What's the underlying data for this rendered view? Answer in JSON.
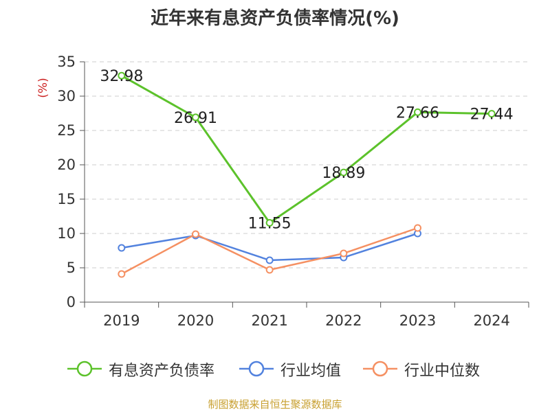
{
  "chart_data": {
    "type": "line",
    "title": "近年来有息资产负债率情况(%)",
    "ylabel": "(%)",
    "categories": [
      "2019",
      "2020",
      "2021",
      "2022",
      "2023",
      "2024"
    ],
    "yticks": [
      0,
      5,
      10,
      15,
      20,
      25,
      30,
      35
    ],
    "ylim": [
      0,
      35
    ],
    "grid": true,
    "legend_position": "bottom",
    "series": [
      {
        "name": "有息资产负债率",
        "color": "#5cc22b",
        "values": [
          32.98,
          26.91,
          11.55,
          18.89,
          27.66,
          27.44
        ],
        "labels": [
          "32.98",
          "26.91",
          "11.55",
          "18.89",
          "27.66",
          "27.44"
        ]
      },
      {
        "name": "行业均值",
        "color": "#5282de",
        "values": [
          7.9,
          9.7,
          6.1,
          6.5,
          10.0,
          null
        ]
      },
      {
        "name": "行业中位数",
        "color": "#f59062",
        "values": [
          4.1,
          9.9,
          4.7,
          7.1,
          10.8,
          null
        ]
      }
    ]
  },
  "source_note": "制图数据来自恒生聚源数据库"
}
